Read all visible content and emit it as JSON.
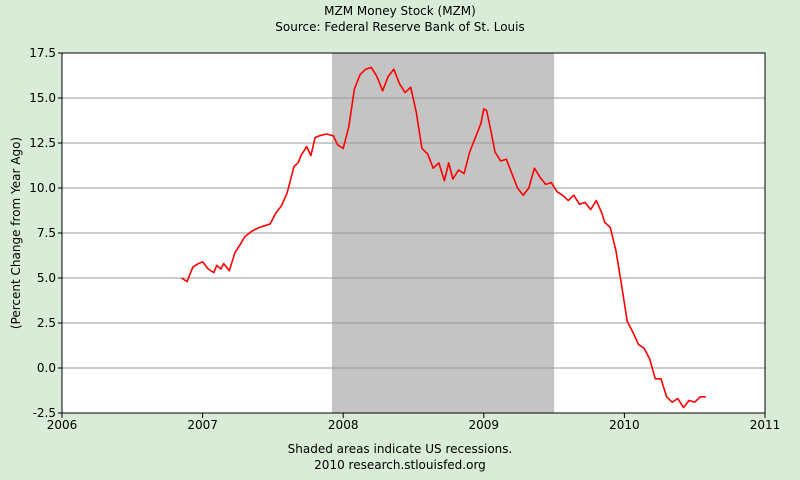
{
  "chart_data": {
    "type": "line",
    "title": "MZM Money Stock (MZM)",
    "subtitle": "Source: Federal Reserve Bank of St. Louis",
    "xlabel": "",
    "ylabel": "(Percent Change from Year Ago)",
    "xlim": [
      2006,
      2011
    ],
    "ylim": [
      -2.5,
      17.5
    ],
    "x_ticks": [
      "2006",
      "2007",
      "2008",
      "2009",
      "2010",
      "2011"
    ],
    "y_ticks": [
      "17.5",
      "15.0",
      "12.5",
      "10.0",
      "7.5",
      "5.0",
      "2.5",
      "0.0",
      "-2.5"
    ],
    "grid": true,
    "recession_shading": [
      {
        "start": 2007.92,
        "end": 2009.5
      }
    ],
    "footnote_1": "Shaded areas indicate US recessions.",
    "footnote_2": "2010 research.stlouisfed.org",
    "series": [
      {
        "color": "#ff0000",
        "x": [
          2006.85,
          2006.89,
          2006.93,
          2006.97,
          2007.0,
          2007.04,
          2007.08,
          2007.1,
          2007.13,
          2007.15,
          2007.19,
          2007.23,
          2007.27,
          2007.3,
          2007.35,
          2007.4,
          2007.44,
          2007.48,
          2007.52,
          2007.56,
          2007.6,
          2007.65,
          2007.68,
          2007.7,
          2007.74,
          2007.77,
          2007.8,
          2007.83,
          2007.88,
          2007.93,
          2007.96,
          2008.0,
          2008.04,
          2008.08,
          2008.12,
          2008.16,
          2008.2,
          2008.24,
          2008.28,
          2008.32,
          2008.36,
          2008.4,
          2008.44,
          2008.48,
          2008.52,
          2008.56,
          2008.6,
          2008.64,
          2008.68,
          2008.72,
          2008.75,
          2008.78,
          2008.82,
          2008.86,
          2008.9,
          2008.94,
          2008.98,
          2009.0,
          2009.02,
          2009.05,
          2009.08,
          2009.12,
          2009.16,
          2009.2,
          2009.24,
          2009.28,
          2009.32,
          2009.36,
          2009.4,
          2009.44,
          2009.48,
          2009.52,
          2009.56,
          2009.6,
          2009.64,
          2009.68,
          2009.72,
          2009.76,
          2009.8,
          2009.84,
          2009.86,
          2009.9,
          2009.94,
          2009.98,
          2010.02,
          2010.06,
          2010.1,
          2010.14,
          2010.18,
          2010.22,
          2010.26,
          2010.3,
          2010.34,
          2010.38,
          2010.42,
          2010.46,
          2010.5,
          2010.54,
          2010.58
        ],
        "values": [
          5.0,
          4.8,
          5.6,
          5.8,
          5.9,
          5.5,
          5.3,
          5.7,
          5.5,
          5.8,
          5.4,
          6.4,
          6.9,
          7.3,
          7.6,
          7.8,
          7.9,
          8.0,
          8.6,
          9.0,
          9.7,
          11.2,
          11.4,
          11.8,
          12.3,
          11.8,
          12.8,
          12.9,
          13.0,
          12.9,
          12.4,
          12.2,
          13.4,
          15.5,
          16.3,
          16.6,
          16.7,
          16.2,
          15.4,
          16.2,
          16.6,
          15.8,
          15.3,
          15.6,
          14.2,
          12.2,
          11.9,
          11.1,
          11.4,
          10.4,
          11.4,
          10.5,
          11.0,
          10.8,
          12.0,
          12.8,
          13.6,
          14.4,
          14.3,
          13.2,
          12.0,
          11.5,
          11.6,
          10.8,
          10.0,
          9.6,
          10.0,
          11.1,
          10.6,
          10.2,
          10.3,
          9.8,
          9.6,
          9.3,
          9.6,
          9.1,
          9.2,
          8.8,
          9.3,
          8.6,
          8.1,
          7.8,
          6.5,
          4.6,
          2.6,
          2.0,
          1.3,
          1.1,
          0.5,
          -0.6,
          -0.6,
          -1.6,
          -1.9,
          -1.7,
          -2.2,
          -1.8,
          -1.9,
          -1.6,
          -1.6
        ]
      }
    ]
  }
}
